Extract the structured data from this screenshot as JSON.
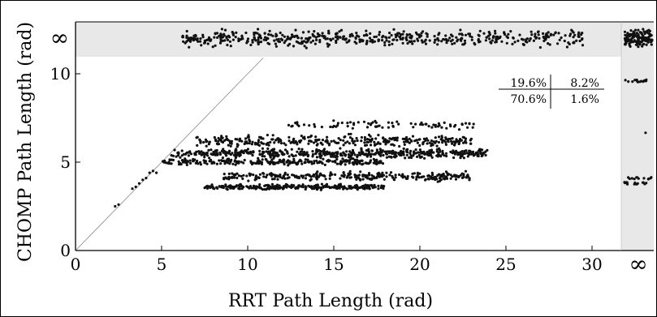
{
  "chart_data": {
    "type": "scatter",
    "title": "",
    "xlabel": "RRT Path Length (rad)",
    "ylabel": "CHOMP Path Length (rad)",
    "xlim": [
      0,
      32
    ],
    "ylim": [
      0,
      12
    ],
    "xticks": [
      0,
      5,
      10,
      15,
      20,
      25,
      30
    ],
    "yticks": [
      0,
      5,
      10
    ],
    "x_tick_labels": [
      "0",
      "5",
      "10",
      "15",
      "20",
      "25",
      "30"
    ],
    "y_tick_labels": [
      "0",
      "5",
      "10"
    ],
    "infinity_label_x": "∞",
    "infinity_label_y": "∞",
    "reference_line": "y = x",
    "grid": false,
    "legend": "none",
    "point_color": "#111111",
    "failure_band_color": "#e8e8e8",
    "table": [
      [
        "19.6%",
        "8.2%"
      ],
      [
        "70.6%",
        "1.6%"
      ]
    ],
    "clusters": [
      {
        "region": "diagonal",
        "x": [
          2.3,
          2.5,
          3.3,
          3.5,
          3.7,
          3.9,
          4.1,
          4.3,
          4.5,
          4.7
        ],
        "y": [
          2.5,
          2.6,
          3.5,
          3.6,
          3.8,
          4.0,
          4.1,
          4.4,
          4.5,
          4.4
        ]
      },
      {
        "region": "band-y5.5",
        "x_range": [
          5.5,
          24.0
        ],
        "y_mean": 5.5,
        "y_spread": 0.35,
        "count": 520
      },
      {
        "region": "band-y5.0",
        "x_range": [
          5.0,
          18.0
        ],
        "y_mean": 5.0,
        "y_spread": 0.25,
        "count": 260
      },
      {
        "region": "band-y6.1",
        "x_range": [
          7.0,
          23.0
        ],
        "y_mean": 6.2,
        "y_spread": 0.45,
        "count": 320
      },
      {
        "region": "band-y7.0",
        "x_range": [
          12.0,
          23.5
        ],
        "y_mean": 7.1,
        "y_spread": 0.35,
        "count": 80
      },
      {
        "region": "band-y4.2",
        "x_range": [
          8.5,
          23.0
        ],
        "y_mean": 4.2,
        "y_spread": 0.35,
        "count": 300
      },
      {
        "region": "band-y3.6",
        "x_range": [
          7.5,
          18.0
        ],
        "y_mean": 3.6,
        "y_spread": 0.2,
        "count": 260
      },
      {
        "region": "chomp-fail",
        "x_range": [
          6.2,
          29.5
        ],
        "y": "inf",
        "count": 520
      },
      {
        "region": "rrt-fail",
        "x": "inf",
        "y_values": [
          9.6,
          6.6,
          4.1,
          3.8
        ],
        "counts": [
          16,
          1,
          12,
          14
        ]
      },
      {
        "region": "both-fail",
        "x": "inf",
        "y": "inf",
        "count": 140
      }
    ]
  }
}
